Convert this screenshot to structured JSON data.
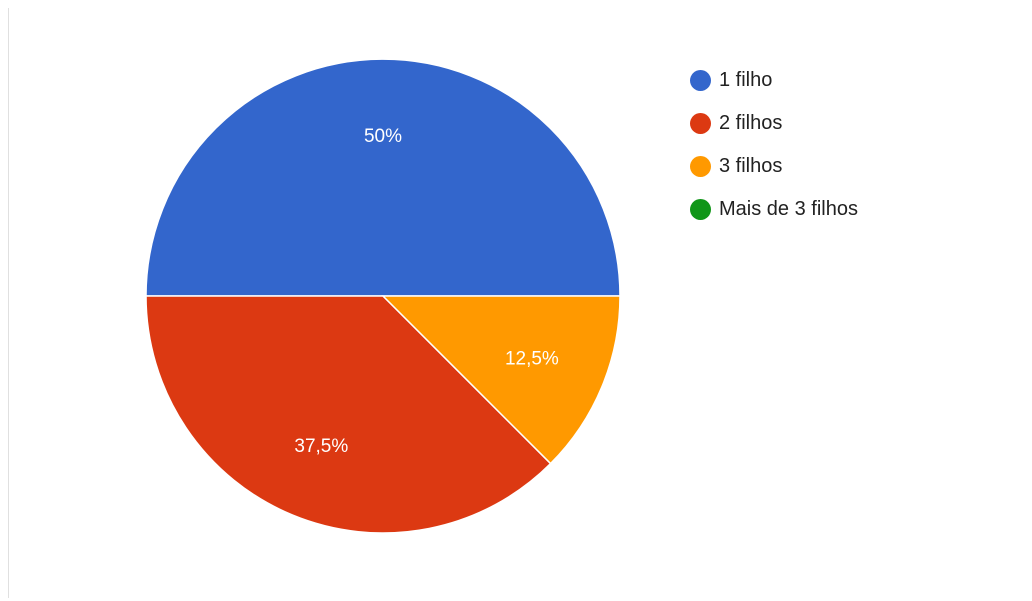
{
  "chart_data": {
    "type": "pie",
    "slices": [
      {
        "label": "1 filho",
        "value": 50,
        "display": "50%",
        "color": "#3366cc"
      },
      {
        "label": "2 filhos",
        "value": 37.5,
        "display": "37,5%",
        "color": "#dc3912"
      },
      {
        "label": "3 filhos",
        "value": 12.5,
        "display": "12,5%",
        "color": "#ff9900"
      },
      {
        "label": "Mais de 3 filhos",
        "value": 0,
        "display": "",
        "color": "#109618"
      }
    ],
    "start": "right, counter-clockwise",
    "legend_position": "right"
  }
}
